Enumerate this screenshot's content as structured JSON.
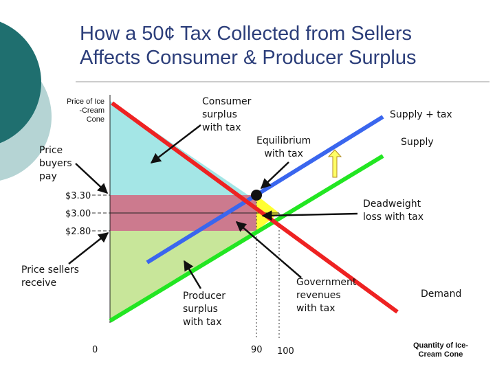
{
  "title_lines": [
    "How a 50¢ Tax Collected from Sellers",
    "Affects Consumer & Producer Surplus"
  ],
  "y_axis_label": [
    "Price of Ice",
    "-Cream",
    "Cone"
  ],
  "x_axis_label": [
    "Quantity of Ice-",
    "Cream Cone"
  ],
  "labels": {
    "consumer_surplus": [
      "Consumer",
      "surplus",
      "with tax"
    ],
    "price_buyers_pay": [
      "Price",
      "buyers",
      "pay"
    ],
    "equilibrium": [
      "Equilibrium",
      "with tax"
    ],
    "supply_tax": "Supply + tax",
    "supply": "Supply",
    "deadweight": [
      "Deadweight",
      "loss with tax"
    ],
    "price_sellers_receive": [
      "Price sellers",
      "receive"
    ],
    "producer_surplus": [
      "Producer",
      "surplus",
      "with tax"
    ],
    "government_revenues": [
      "Government",
      "revenues",
      "with tax"
    ],
    "demand": "Demand"
  },
  "ticks": {
    "y": [
      "$3.30",
      "$3.00",
      "$2.80"
    ],
    "x": [
      "0",
      "90",
      "100"
    ]
  },
  "colors": {
    "title": "#2c3e7a",
    "theme_dark": "#1f6f6f",
    "theme_light": "#b5d4d4",
    "demand": "#ee2222",
    "supply": "#22e622",
    "supply_tax": "#3a66ee",
    "consumer_surplus": "#a4e6e6",
    "government_revenue": "#cc7a8e",
    "producer_surplus": "#c8e69a",
    "deadweight_loss": "#ffff33"
  },
  "icons": [
    "up-arrow-icon",
    "equilibrium-dot-icon"
  ]
}
